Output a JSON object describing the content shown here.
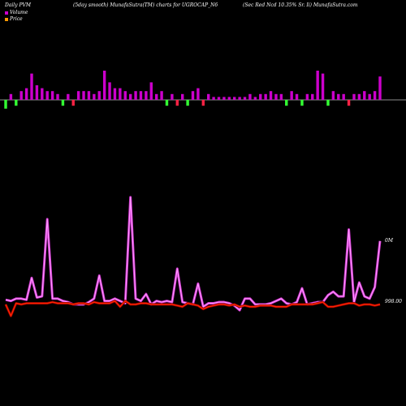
{
  "header": {
    "left": "Daily PVM",
    "center": "(5day smooth) MunafaSutra(TM) charts for UGROCAP_N6",
    "right": "(Sec Red Ncd 10.35% Sr. Ii) MunafaSutra.com"
  },
  "legend": [
    {
      "label": "Volume",
      "color": "#cc00cc"
    },
    {
      "label": "Price",
      "color": "#ff9900"
    }
  ],
  "colors": {
    "volume_line": "#cc33cc",
    "volume_line_highlight": "#ff99ff",
    "price_line": "#ff2200",
    "bar_up": "#cc00cc",
    "bar_down": "#ff2244",
    "bar_green": "#33ff33",
    "axis": "#bbbbbb"
  },
  "chart_data": {
    "type": "line",
    "title": "(5day smooth) MunafaSutra(TM) charts for UGROCAP_N6",
    "right_labels": {
      "volume_last": "0M",
      "price_last": "998.00"
    },
    "bars": {
      "type": "bar",
      "unit": "relative",
      "values": [
        -3,
        2,
        -2,
        3,
        4,
        9,
        5,
        4,
        3,
        3,
        2,
        -2,
        2,
        -2,
        3,
        3,
        3,
        2,
        3,
        10,
        6,
        4,
        4,
        3,
        2,
        3,
        3,
        3,
        6,
        2,
        3,
        -2,
        2,
        -2,
        2,
        -2,
        3,
        4,
        -2,
        2,
        1,
        1,
        1,
        1,
        1,
        1,
        1,
        2,
        1,
        2,
        2,
        3,
        2,
        2,
        -2,
        3,
        2,
        -2,
        2,
        2,
        10,
        9,
        -2,
        3,
        2,
        2,
        -2,
        2,
        2,
        3,
        2,
        3,
        8
      ],
      "colors": [
        "g",
        "m",
        "g",
        "m",
        "m",
        "m",
        "m",
        "m",
        "m",
        "m",
        "m",
        "g",
        "m",
        "r",
        "m",
        "m",
        "m",
        "m",
        "m",
        "m",
        "m",
        "m",
        "m",
        "m",
        "m",
        "m",
        "m",
        "m",
        "m",
        "m",
        "m",
        "g",
        "m",
        "r",
        "m",
        "g",
        "m",
        "m",
        "r",
        "m",
        "m",
        "m",
        "m",
        "m",
        "m",
        "m",
        "m",
        "m",
        "m",
        "m",
        "m",
        "m",
        "m",
        "m",
        "g",
        "m",
        "m",
        "g",
        "m",
        "m",
        "m",
        "m",
        "g",
        "m",
        "m",
        "m",
        "r",
        "m",
        "m",
        "m",
        "m",
        "m",
        "m"
      ]
    },
    "x": [
      0,
      1,
      2,
      3,
      4,
      5,
      6,
      7,
      8,
      9,
      10,
      11,
      12,
      13,
      14,
      15,
      16,
      17,
      18,
      19,
      20,
      21,
      22,
      23,
      24,
      25,
      26,
      27,
      28,
      29,
      30,
      31,
      32,
      33,
      34,
      35,
      36,
      37,
      38,
      39,
      40,
      41,
      42,
      43,
      44,
      45,
      46,
      47,
      48,
      49,
      50,
      51,
      52,
      53,
      54,
      55,
      56,
      57,
      58,
      59,
      60,
      61,
      62,
      63,
      64,
      65,
      66,
      67,
      68,
      69,
      70,
      71,
      72
    ],
    "series": [
      {
        "name": "Volume",
        "values": [
          9,
          8,
          10,
          10,
          9,
          28,
          11,
          12,
          79,
          10,
          10,
          8,
          7,
          5,
          5,
          5,
          7,
          10,
          30,
          8,
          8,
          10,
          8,
          6,
          98,
          10,
          8,
          14,
          5,
          8,
          7,
          8,
          7,
          36,
          7,
          6,
          5,
          23,
          3,
          6,
          6,
          7,
          7,
          6,
          4,
          0,
          10,
          10,
          5,
          5,
          5,
          6,
          8,
          10,
          6,
          5,
          7,
          19,
          5,
          6,
          7,
          7,
          13,
          16,
          12,
          12,
          70,
          7,
          24,
          12,
          10,
          20,
          60
        ],
        "ylim": [
          0,
          100
        ]
      },
      {
        "name": "Price",
        "values": [
          5,
          -5,
          6,
          5,
          6,
          6,
          6,
          6,
          6,
          7,
          6,
          6,
          6,
          5,
          6,
          6,
          5,
          7,
          6,
          6,
          6,
          8,
          3,
          8,
          5,
          5,
          6,
          6,
          5,
          5,
          5,
          5,
          5,
          4,
          3,
          6,
          5,
          4,
          1,
          3,
          4,
          5,
          5,
          4,
          5,
          3,
          4,
          3,
          3,
          4,
          4,
          4,
          3,
          3,
          3,
          5,
          5,
          5,
          5,
          5,
          6,
          7,
          3,
          3,
          4,
          5,
          6,
          6,
          4,
          5,
          5,
          4,
          5
        ],
        "ylim": [
          0,
          100
        ]
      }
    ]
  }
}
